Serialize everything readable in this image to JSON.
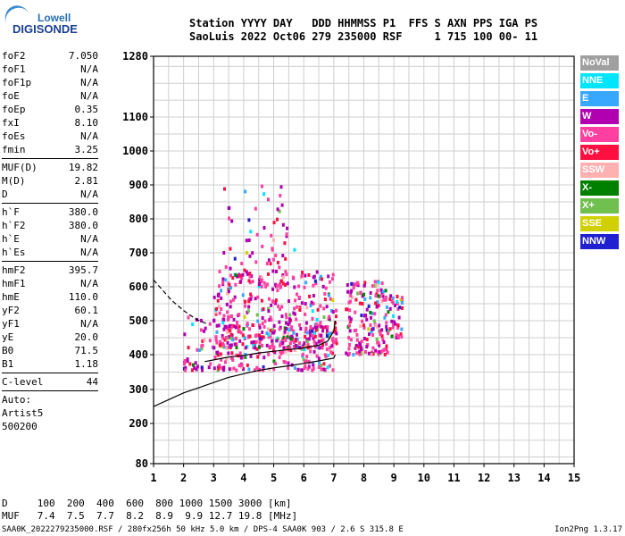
{
  "logo": {
    "line1": "Lowell",
    "line2": "DIGISONDE"
  },
  "header": {
    "line1": "Station YYYY DAY   DDD HHMMSS P1  FFS S AXN PPS IGA PS",
    "line2": "SaoLuis 2022 Oct06 279 235000 RSF     1 715 100 00- 11"
  },
  "params": {
    "group1": [
      {
        "label": "foF2",
        "value": "7.050"
      },
      {
        "label": "foF1",
        "value": "N/A"
      },
      {
        "label": "foF1p",
        "value": "N/A"
      },
      {
        "label": "foE",
        "value": "N/A"
      },
      {
        "label": "foEp",
        "value": "0.35"
      },
      {
        "label": "fxI",
        "value": "8.10"
      },
      {
        "label": "foEs",
        "value": "N/A"
      },
      {
        "label": "fmin",
        "value": "3.25"
      }
    ],
    "group2": [
      {
        "label": "MUF(D)",
        "value": "19.82"
      },
      {
        "label": "M(D)",
        "value": "2.81"
      },
      {
        "label": "D",
        "value": "N/A"
      }
    ],
    "group3": [
      {
        "label": "h`F",
        "value": "380.0"
      },
      {
        "label": "h`F2",
        "value": "380.0"
      },
      {
        "label": "h`E",
        "value": "N/A"
      },
      {
        "label": "h`Es",
        "value": "N/A"
      }
    ],
    "group4": [
      {
        "label": "hmF2",
        "value": "395.7"
      },
      {
        "label": "hmF1",
        "value": "N/A"
      },
      {
        "label": "hmE",
        "value": "110.0"
      },
      {
        "label": "yF2",
        "value": "60.1"
      },
      {
        "label": "yF1",
        "value": "N/A"
      },
      {
        "label": "yE",
        "value": "20.0"
      },
      {
        "label": "B0",
        "value": "71.5"
      },
      {
        "label": "B1",
        "value": "1.18"
      }
    ],
    "group5": [
      {
        "label": "C-level",
        "value": "44"
      }
    ],
    "auto": [
      "Auto:",
      "Artist5",
      "500200"
    ]
  },
  "legend": [
    {
      "label": "NoVal",
      "color": "#a0a0a0"
    },
    {
      "label": "NNE",
      "color": "#00e5ff"
    },
    {
      "label": "E",
      "color": "#38a8ff"
    },
    {
      "label": "W",
      "color": "#b000b0"
    },
    {
      "label": "Vo-",
      "color": "#ff40a0"
    },
    {
      "label": "Vo+",
      "color": "#ff1040"
    },
    {
      "label": "SSW",
      "color": "#ffb0b0"
    },
    {
      "label": "X-",
      "color": "#008000"
    },
    {
      "label": "X+",
      "color": "#70c050"
    },
    {
      "label": "SSE",
      "color": "#d0d000"
    },
    {
      "label": "NNW",
      "color": "#2020d0"
    }
  ],
  "bottom": {
    "line1": "D     100  200  400  600  800 1000 1500 3000 [km]",
    "line2": "MUF   7.4  7.5  7.7  8.2  8.9  9.9 12.7 19.8 [MHz]"
  },
  "footer": "SAA0K_2022279235000.RSF / 280fx256h 50 kHz 5.0 km / DPS-4 SAA0K 903 / 2.6 S 315.8 E",
  "version": "Ion2Png 1.3.17",
  "chart_data": {
    "type": "scatter",
    "title": "",
    "xlabel": "",
    "ylabel": "",
    "xlim": [
      1,
      15
    ],
    "ylim": [
      80,
      1280
    ],
    "y_scale": "nonlinear (ionogram virtual height, compressed above 600 km)",
    "grid": true,
    "x_ticks": [
      1,
      2,
      3,
      4,
      5,
      6,
      7,
      8,
      9,
      10,
      11,
      12,
      13,
      14,
      15
    ],
    "y_ticks": [
      80,
      200,
      300,
      400,
      500,
      600,
      700,
      800,
      900,
      1000,
      1100,
      1280
    ],
    "series": [
      {
        "type": "line",
        "style": "solid",
        "x": [
          1.0,
          1.5,
          2.0,
          2.5,
          3.0,
          3.5,
          4.0,
          4.5,
          5.0,
          5.5,
          6.0,
          6.5,
          7.0,
          7.05
        ],
        "y": [
          250,
          270,
          290,
          305,
          320,
          335,
          345,
          355,
          362,
          368,
          375,
          382,
          390,
          400
        ]
      },
      {
        "type": "line",
        "style": "dashed",
        "x": [
          1.0,
          1.3,
          1.6,
          2.0,
          2.4,
          2.8
        ],
        "y": [
          620,
          590,
          560,
          530,
          505,
          490
        ]
      },
      {
        "type": "line",
        "style": "solid",
        "x": [
          2.7,
          3.0,
          3.5,
          4.0,
          4.5,
          5.0,
          5.5,
          6.0,
          6.5,
          6.8,
          7.0,
          7.05
        ],
        "y": [
          380,
          385,
          393,
          398,
          405,
          410,
          415,
          420,
          428,
          440,
          470,
          500
        ]
      }
    ],
    "echo_clusters": [
      {
        "xmin": 2.0,
        "xmax": 7.1,
        "ymin": 355,
        "ymax": 520,
        "density": 260
      },
      {
        "xmin": 3.0,
        "xmax": 7.1,
        "ymin": 420,
        "ymax": 650,
        "density": 360
      },
      {
        "xmin": 3.3,
        "xmax": 5.7,
        "ymin": 600,
        "ymax": 900,
        "density": 80
      },
      {
        "xmin": 7.4,
        "xmax": 8.8,
        "ymin": 400,
        "ymax": 620,
        "density": 170
      },
      {
        "xmin": 8.8,
        "xmax": 9.3,
        "ymin": 450,
        "ymax": 580,
        "density": 40
      }
    ]
  }
}
